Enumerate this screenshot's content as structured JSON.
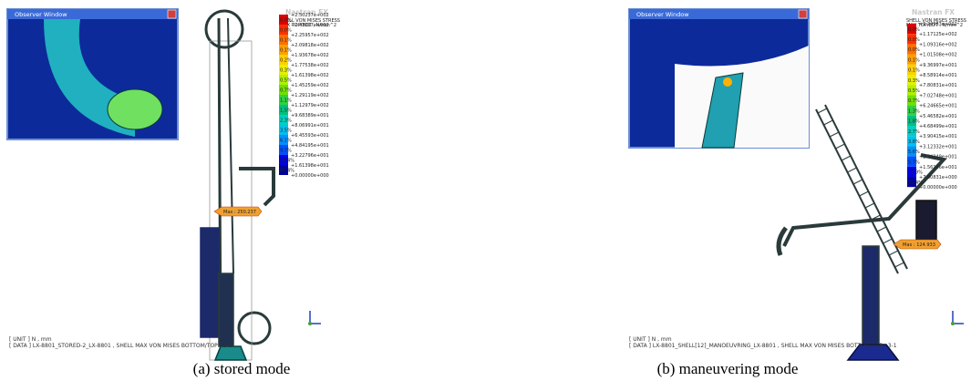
{
  "figure": {
    "panels": [
      {
        "caption": "(a) stored mode",
        "observer_title": "Observer Window",
        "logo": "Nastran FX",
        "legend_title": [
          "SHELL VON MISES STRESS",
          "MAX TOP/BOT , N/mm^2"
        ],
        "legend_values": [
          "+2.50237e+002",
          "+2.42097e+002",
          "+2.25957e+002",
          "+2.09818e+002",
          "+1.93678e+002",
          "+1.77538e+002",
          "+1.61398e+002",
          "+1.45259e+002",
          "+1.29119e+002",
          "+1.12979e+002",
          "+9.68389e+001",
          "+8.06991e+001",
          "+6.45593e+001",
          "+4.84195e+001",
          "+3.22796e+001",
          "+1.61398e+001",
          "+0.00000e+000"
        ],
        "legend_percents": [
          "0.0%",
          "0.0%",
          "0.1%",
          "0.1%",
          "0.2%",
          "0.3%",
          "0.5%",
          "0.7%",
          "1.1%",
          "1.5%",
          "2.3%",
          "3.5%",
          "6.1%",
          "9.7%",
          "18.4%",
          "60.4%"
        ],
        "max_label": "Max : 250.237",
        "info": [
          "[ UNIT ] N , mm",
          "[ DATA ] LX-8801_STORED-2_LX-8801 ,  SHELL MAX VON MISES BOTTOM/TOP , 2-1"
        ]
      },
      {
        "caption": "(b) maneuvering mode",
        "observer_title": "Observer Window",
        "logo": "Nastran FX",
        "legend_title": [
          "SHELL VON MISES STRESS",
          "MAX TOP/BOT , N/mm^2"
        ],
        "legend_values": [
          "+1.24933e+002",
          "+1.17125e+002",
          "+1.09316e+002",
          "+1.01508e+002",
          "+9.36997e+001",
          "+8.58914e+001",
          "+7.80831e+001",
          "+7.02748e+001",
          "+6.24665e+001",
          "+5.46582e+001",
          "+4.68499e+001",
          "+3.90415e+001",
          "+3.12332e+001",
          "+2.34249e+001",
          "+1.56166e+001",
          "+7.80831e+000",
          "+0.00000e+000"
        ],
        "legend_percents": [
          "0.0%",
          "0.0%",
          "0.0%",
          "0.1%",
          "0.1%",
          "0.3%",
          "0.5%",
          "0.7%",
          "1.3%",
          "1.8%",
          "2.7%",
          "3.8%",
          "5.6%",
          "5.7%",
          "18.9%",
          "55.4%"
        ],
        "max_label": "Max : 124.933",
        "info": [
          "[ UNIT ] N , mm",
          "[ DATA ] LX-8801_SHELL[12]_MANOEUVRING_LX-8801 ,  SHELL MAX VON MISES BOTTOM/TOP , 3-1"
        ]
      }
    ]
  }
}
